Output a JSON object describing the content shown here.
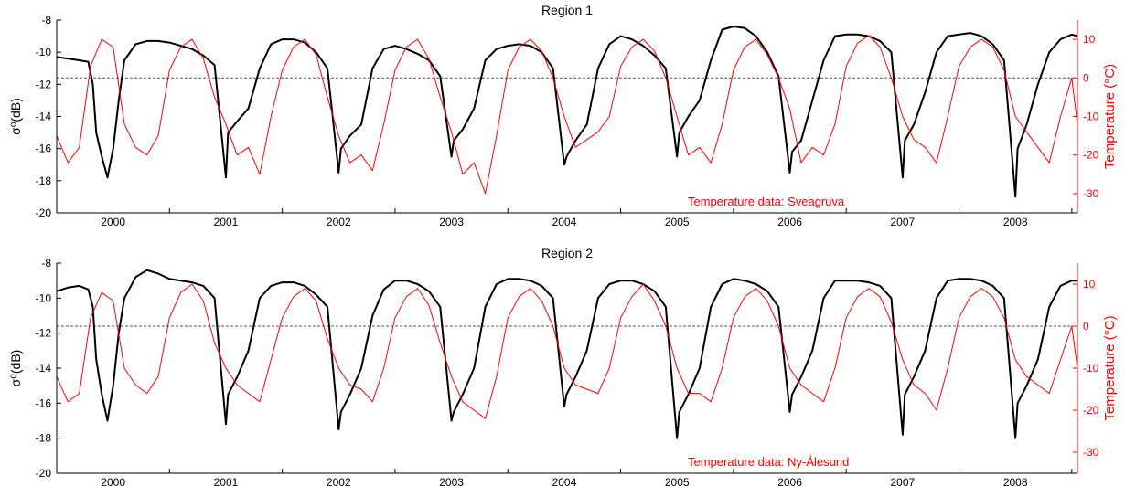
{
  "chart_data": [
    {
      "type": "line",
      "title": "Region 1",
      "ylabel": "σ⁰(dB)",
      "ylabel_right": "Temperature (°C)",
      "annotation": "Temperature data: Sveagruva",
      "xlim": [
        1999.5,
        2008.55
      ],
      "ylim": [
        -20,
        -8
      ],
      "ylim_right": [
        -35,
        15
      ],
      "x_ticks": [
        2000,
        2001,
        2002,
        2003,
        2004,
        2005,
        2006,
        2007,
        2008
      ],
      "x_tick_labels": [
        "2000",
        "2001",
        "2002",
        "2003",
        "2004",
        "2005",
        "2006",
        "2007",
        "2008"
      ],
      "y_ticks": [
        -20,
        -18,
        -16,
        -14,
        -12,
        -10,
        -8
      ],
      "y_tick_labels": [
        "-20",
        "-18",
        "-16",
        "-14",
        "-12",
        "-10",
        "-8"
      ],
      "y_right_ticks": [
        -30,
        -20,
        -10,
        0,
        10
      ],
      "y_right_tick_labels": [
        "-30",
        "-20",
        "-10",
        "0",
        "10"
      ],
      "zero_reference_line": -11.6,
      "colors": {
        "sigma": "#000000",
        "temperature": "#ff0000",
        "reference": "#555555"
      },
      "series": [
        {
          "axis": "left",
          "x": [
            1999.5,
            1999.6,
            1999.7,
            1999.78,
            1999.82,
            1999.85,
            1999.9,
            1999.95,
            2000.0,
            2000.05,
            2000.1,
            2000.2,
            2000.3,
            2000.4,
            2000.5,
            2000.6,
            2000.7,
            2000.8,
            2000.9,
            2001.0,
            2001.02,
            2001.1,
            2001.2,
            2001.3,
            2001.4,
            2001.5,
            2001.6,
            2001.7,
            2001.8,
            2001.9,
            2002.0,
            2002.02,
            2002.1,
            2002.2,
            2002.3,
            2002.4,
            2002.5,
            2002.6,
            2002.7,
            2002.8,
            2002.9,
            2003.0,
            2003.02,
            2003.1,
            2003.2,
            2003.3,
            2003.4,
            2003.5,
            2003.6,
            2003.7,
            2003.8,
            2003.9,
            2004.0,
            2004.02,
            2004.1,
            2004.2,
            2004.3,
            2004.4,
            2004.5,
            2004.6,
            2004.7,
            2004.8,
            2004.9,
            2005.0,
            2005.02,
            2005.1,
            2005.2,
            2005.3,
            2005.4,
            2005.5,
            2005.6,
            2005.7,
            2005.8,
            2005.9,
            2006.0,
            2006.02,
            2006.1,
            2006.2,
            2006.3,
            2006.4,
            2006.5,
            2006.6,
            2006.7,
            2006.8,
            2006.9,
            2007.0,
            2007.02,
            2007.1,
            2007.2,
            2007.3,
            2007.4,
            2007.5,
            2007.6,
            2007.7,
            2007.8,
            2007.9,
            2008.0,
            2008.02,
            2008.1,
            2008.2,
            2008.3,
            2008.4,
            2008.5,
            2008.55
          ],
          "y": [
            -10.3,
            -10.4,
            -10.5,
            -10.6,
            -12.0,
            -15.0,
            -16.5,
            -17.8,
            -16.0,
            -13.0,
            -10.5,
            -9.5,
            -9.3,
            -9.3,
            -9.4,
            -9.6,
            -9.8,
            -10.2,
            -10.8,
            -17.8,
            -15.0,
            -14.3,
            -13.5,
            -11.0,
            -9.5,
            -9.2,
            -9.2,
            -9.4,
            -10.0,
            -11.0,
            -17.5,
            -16.0,
            -15.2,
            -14.5,
            -11.0,
            -9.8,
            -9.6,
            -9.8,
            -10.1,
            -10.5,
            -11.5,
            -16.5,
            -15.5,
            -14.8,
            -13.5,
            -10.5,
            -9.8,
            -9.6,
            -9.5,
            -9.6,
            -10.0,
            -11.0,
            -17.0,
            -16.5,
            -15.5,
            -14.5,
            -11.0,
            -9.5,
            -9.0,
            -9.2,
            -9.6,
            -10.2,
            -11.0,
            -16.5,
            -15.0,
            -14.0,
            -13.0,
            -10.5,
            -8.6,
            -8.4,
            -8.5,
            -9.0,
            -10.0,
            -11.5,
            -17.5,
            -16.2,
            -15.5,
            -13.0,
            -10.5,
            -9.0,
            -8.9,
            -8.9,
            -9.0,
            -9.3,
            -10.0,
            -17.8,
            -15.5,
            -14.5,
            -12.5,
            -10.0,
            -9.0,
            -8.9,
            -8.8,
            -9.0,
            -9.5,
            -10.5,
            -19.0,
            -16.0,
            -14.5,
            -12.0,
            -10.0,
            -9.2,
            -8.9,
            -9.0
          ]
        },
        {
          "axis": "right",
          "x": [
            1999.5,
            1999.6,
            1999.7,
            1999.8,
            1999.9,
            2000.0,
            2000.1,
            2000.2,
            2000.3,
            2000.4,
            2000.5,
            2000.6,
            2000.7,
            2000.8,
            2000.9,
            2001.0,
            2001.1,
            2001.2,
            2001.3,
            2001.4,
            2001.5,
            2001.6,
            2001.7,
            2001.8,
            2001.9,
            2002.0,
            2002.1,
            2002.2,
            2002.3,
            2002.4,
            2002.5,
            2002.6,
            2002.7,
            2002.8,
            2002.9,
            2003.0,
            2003.1,
            2003.2,
            2003.3,
            2003.4,
            2003.5,
            2003.6,
            2003.7,
            2003.8,
            2003.9,
            2004.0,
            2004.1,
            2004.2,
            2004.3,
            2004.4,
            2004.5,
            2004.6,
            2004.7,
            2004.8,
            2004.9,
            2005.0,
            2005.1,
            2005.2,
            2005.3,
            2005.4,
            2005.5,
            2005.6,
            2005.7,
            2005.8,
            2005.9,
            2006.0,
            2006.1,
            2006.2,
            2006.3,
            2006.4,
            2006.5,
            2006.6,
            2006.7,
            2006.8,
            2006.9,
            2007.0,
            2007.1,
            2007.2,
            2007.3,
            2007.4,
            2007.5,
            2007.6,
            2007.7,
            2007.8,
            2007.9,
            2008.0,
            2008.1,
            2008.2,
            2008.3,
            2008.4,
            2008.5,
            2008.55
          ],
          "y": [
            -15,
            -22,
            -18,
            3,
            10,
            8,
            -12,
            -18,
            -20,
            -15,
            2,
            8,
            10,
            5,
            -5,
            -12,
            -20,
            -18,
            -25,
            -10,
            2,
            8,
            10,
            6,
            -5,
            -15,
            -22,
            -20,
            -24,
            -12,
            2,
            8,
            10,
            5,
            -5,
            -14,
            -25,
            -22,
            -30,
            -15,
            2,
            8,
            10,
            7,
            0,
            -10,
            -18,
            -16,
            -14,
            -10,
            3,
            8,
            10,
            7,
            0,
            -10,
            -20,
            -18,
            -22,
            -12,
            2,
            8,
            10,
            6,
            0,
            -8,
            -22,
            -18,
            -20,
            -12,
            3,
            9,
            11,
            8,
            0,
            -10,
            -16,
            -18,
            -22,
            -10,
            3,
            8,
            10,
            8,
            2,
            -10,
            -14,
            -18,
            -22,
            -10,
            0,
            -12
          ]
        }
      ]
    },
    {
      "type": "line",
      "title": "Region 2",
      "ylabel": "σ⁰(dB)",
      "ylabel_right": "Temperature (°C)",
      "annotation": "Temperature data: Ny-Ålesund",
      "xlim": [
        1999.5,
        2008.55
      ],
      "ylim": [
        -20,
        -8
      ],
      "ylim_right": [
        -35,
        15
      ],
      "x_ticks": [
        2000,
        2001,
        2002,
        2003,
        2004,
        2005,
        2006,
        2007,
        2008
      ],
      "x_tick_labels": [
        "2000",
        "2001",
        "2002",
        "2003",
        "2004",
        "2005",
        "2006",
        "2007",
        "2008"
      ],
      "y_ticks": [
        -20,
        -18,
        -16,
        -14,
        -12,
        -10,
        -8
      ],
      "y_tick_labels": [
        "-20",
        "-18",
        "-16",
        "-14",
        "-12",
        "-10",
        "-8"
      ],
      "y_right_ticks": [
        -30,
        -20,
        -10,
        0,
        10
      ],
      "y_right_tick_labels": [
        "-30",
        "-20",
        "-10",
        "0",
        "10"
      ],
      "zero_reference_line": -11.6,
      "colors": {
        "sigma": "#000000",
        "temperature": "#ff0000",
        "reference": "#555555"
      },
      "series": [
        {
          "axis": "left",
          "x": [
            1999.5,
            1999.6,
            1999.7,
            1999.78,
            1999.82,
            1999.85,
            1999.9,
            1999.95,
            2000.0,
            2000.05,
            2000.1,
            2000.2,
            2000.3,
            2000.4,
            2000.5,
            2000.6,
            2000.7,
            2000.8,
            2000.9,
            2001.0,
            2001.02,
            2001.1,
            2001.2,
            2001.3,
            2001.4,
            2001.5,
            2001.6,
            2001.7,
            2001.8,
            2001.9,
            2002.0,
            2002.02,
            2002.1,
            2002.2,
            2002.3,
            2002.4,
            2002.5,
            2002.6,
            2002.7,
            2002.8,
            2002.9,
            2003.0,
            2003.02,
            2003.1,
            2003.2,
            2003.3,
            2003.4,
            2003.5,
            2003.6,
            2003.7,
            2003.8,
            2003.9,
            2004.0,
            2004.02,
            2004.1,
            2004.2,
            2004.3,
            2004.4,
            2004.5,
            2004.6,
            2004.7,
            2004.8,
            2004.9,
            2005.0,
            2005.02,
            2005.1,
            2005.2,
            2005.3,
            2005.4,
            2005.5,
            2005.6,
            2005.7,
            2005.8,
            2005.9,
            2006.0,
            2006.02,
            2006.1,
            2006.2,
            2006.3,
            2006.4,
            2006.5,
            2006.6,
            2006.7,
            2006.8,
            2006.9,
            2007.0,
            2007.02,
            2007.1,
            2007.2,
            2007.3,
            2007.4,
            2007.5,
            2007.6,
            2007.7,
            2007.8,
            2007.9,
            2008.0,
            2008.02,
            2008.1,
            2008.2,
            2008.3,
            2008.4,
            2008.5,
            2008.55
          ],
          "y": [
            -9.6,
            -9.4,
            -9.3,
            -9.5,
            -10.5,
            -13.5,
            -15.5,
            -17.0,
            -15.0,
            -12.0,
            -10.0,
            -8.8,
            -8.4,
            -8.6,
            -8.9,
            -9.0,
            -9.1,
            -9.3,
            -10.0,
            -17.2,
            -15.5,
            -14.5,
            -13.0,
            -10.0,
            -9.3,
            -9.1,
            -9.1,
            -9.3,
            -9.8,
            -10.5,
            -17.5,
            -16.5,
            -15.5,
            -14.0,
            -11.0,
            -9.5,
            -9.0,
            -9.0,
            -9.2,
            -9.6,
            -10.5,
            -17.0,
            -16.5,
            -15.5,
            -14.0,
            -10.5,
            -9.2,
            -8.9,
            -8.9,
            -9.0,
            -9.3,
            -10.0,
            -16.2,
            -15.5,
            -14.5,
            -13.0,
            -10.0,
            -9.2,
            -9.0,
            -9.0,
            -9.2,
            -9.6,
            -10.5,
            -18.0,
            -16.5,
            -15.5,
            -14.0,
            -10.5,
            -9.2,
            -8.9,
            -9.0,
            -9.2,
            -9.6,
            -10.5,
            -16.5,
            -15.5,
            -14.5,
            -13.0,
            -10.0,
            -9.0,
            -9.0,
            -9.0,
            -9.1,
            -9.3,
            -10.0,
            -17.8,
            -15.5,
            -14.5,
            -13.0,
            -10.0,
            -9.0,
            -8.9,
            -8.9,
            -9.0,
            -9.3,
            -10.0,
            -18.0,
            -16.0,
            -15.0,
            -13.5,
            -10.5,
            -9.3,
            -9.0,
            -9.0
          ]
        },
        {
          "axis": "right",
          "x": [
            1999.5,
            1999.6,
            1999.7,
            1999.8,
            1999.9,
            2000.0,
            2000.1,
            2000.2,
            2000.3,
            2000.4,
            2000.5,
            2000.6,
            2000.7,
            2000.8,
            2000.9,
            2001.0,
            2001.1,
            2001.2,
            2001.3,
            2001.4,
            2001.5,
            2001.6,
            2001.7,
            2001.8,
            2001.9,
            2002.0,
            2002.1,
            2002.2,
            2002.3,
            2002.4,
            2002.5,
            2002.6,
            2002.7,
            2002.8,
            2002.9,
            2003.0,
            2003.1,
            2003.2,
            2003.3,
            2003.4,
            2003.5,
            2003.6,
            2003.7,
            2003.8,
            2003.9,
            2004.0,
            2004.1,
            2004.2,
            2004.3,
            2004.4,
            2004.5,
            2004.6,
            2004.7,
            2004.8,
            2004.9,
            2005.0,
            2005.1,
            2005.2,
            2005.3,
            2005.4,
            2005.5,
            2005.6,
            2005.7,
            2005.8,
            2005.9,
            2006.0,
            2006.1,
            2006.2,
            2006.3,
            2006.4,
            2006.5,
            2006.6,
            2006.7,
            2006.8,
            2006.9,
            2007.0,
            2007.1,
            2007.2,
            2007.3,
            2007.4,
            2007.5,
            2007.6,
            2007.7,
            2007.8,
            2007.9,
            2008.0,
            2008.1,
            2008.2,
            2008.3,
            2008.4,
            2008.5,
            2008.55
          ],
          "y": [
            -12,
            -18,
            -16,
            2,
            8,
            6,
            -10,
            -14,
            -16,
            -12,
            2,
            8,
            10,
            6,
            -4,
            -10,
            -14,
            -16,
            -18,
            -8,
            2,
            7,
            9,
            6,
            -3,
            -10,
            -14,
            -15,
            -18,
            -10,
            2,
            7,
            9,
            5,
            -4,
            -12,
            -18,
            -20,
            -22,
            -12,
            2,
            7,
            9,
            6,
            0,
            -10,
            -14,
            -15,
            -16,
            -10,
            2,
            7,
            10,
            6,
            0,
            -10,
            -16,
            -16,
            -18,
            -10,
            2,
            7,
            9,
            6,
            0,
            -10,
            -14,
            -16,
            -18,
            -10,
            2,
            7,
            9,
            7,
            1,
            -8,
            -14,
            -16,
            -20,
            -10,
            2,
            7,
            9,
            7,
            2,
            -8,
            -12,
            -14,
            -16,
            -8,
            0,
            -10
          ]
        }
      ]
    }
  ]
}
